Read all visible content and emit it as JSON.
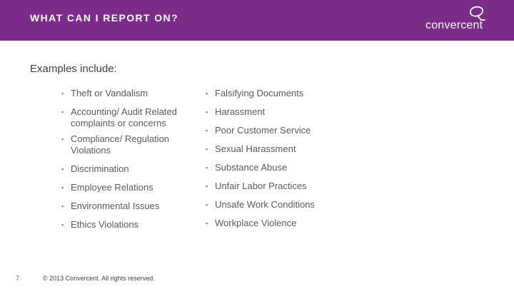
{
  "header": {
    "title": "WHAT CAN I REPORT ON?",
    "logo_text": "convercent",
    "logo_icon": "convercent-logo-mark",
    "bg_color": "#7b2c88"
  },
  "intro": "Examples include:",
  "left_items": [
    "Theft or Vandalism",
    "Accounting/ Audit Related complaints or concerns",
    "Compliance/ Regulation Violations",
    "Discrimination",
    "Employee Relations",
    "Environmental Issues",
    "Ethics Violations"
  ],
  "right_items": [
    "Falsifying Documents",
    "Harassment",
    "Poor Customer Service",
    "Sexual Harassment",
    "Substance Abuse",
    "Unfair Labor Practices",
    "Unsafe Work Conditions",
    "Workplace Violence"
  ],
  "footer": {
    "page_number": "7",
    "copyright": "© 2013 Convercent. All rights reserved."
  },
  "bullet": "▪"
}
